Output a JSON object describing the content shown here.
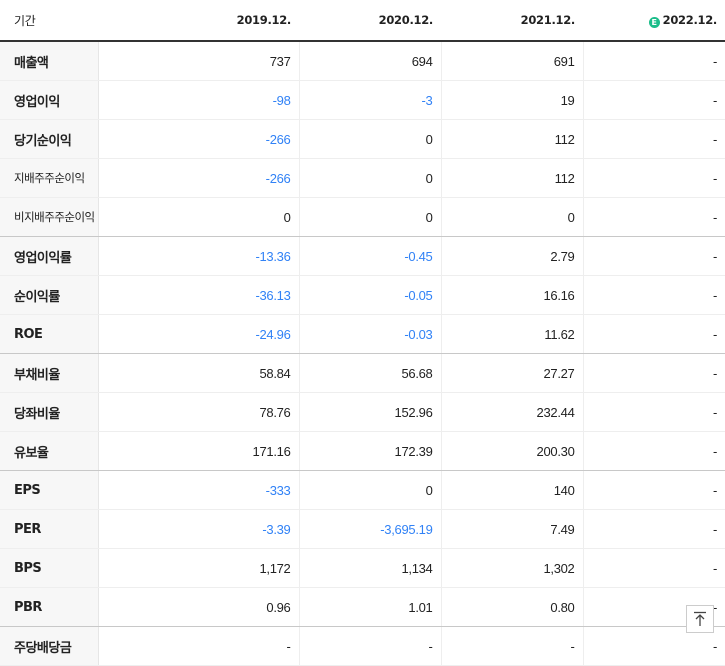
{
  "header": {
    "label": "기간",
    "years": [
      "2019.12.",
      "2020.12.",
      "2021.12.",
      "2022.12."
    ],
    "estimate_icon": "E"
  },
  "rows": [
    {
      "label": "매출액",
      "values": [
        "737",
        "694",
        "691",
        "-"
      ]
    },
    {
      "label": "영업이익",
      "values": [
        "-98",
        "-3",
        "19",
        "-"
      ]
    },
    {
      "label": "당기순이익",
      "values": [
        "-266",
        "0",
        "112",
        "-"
      ]
    },
    {
      "label": "지배주주순이익",
      "values": [
        "-266",
        "0",
        "112",
        "-"
      ]
    },
    {
      "label": "비지배주주순이익",
      "values": [
        "0",
        "0",
        "0",
        "-"
      ]
    },
    {
      "label": "영업이익률",
      "values": [
        "-13.36",
        "-0.45",
        "2.79",
        "-"
      ]
    },
    {
      "label": "순이익률",
      "values": [
        "-36.13",
        "-0.05",
        "16.16",
        "-"
      ]
    },
    {
      "label": "ROE",
      "values": [
        "-24.96",
        "-0.03",
        "11.62",
        "-"
      ]
    },
    {
      "label": "부채비율",
      "values": [
        "58.84",
        "56.68",
        "27.27",
        "-"
      ]
    },
    {
      "label": "당좌비율",
      "values": [
        "78.76",
        "152.96",
        "232.44",
        "-"
      ]
    },
    {
      "label": "유보율",
      "values": [
        "171.16",
        "172.39",
        "200.30",
        "-"
      ]
    },
    {
      "label": "EPS",
      "values": [
        "-333",
        "0",
        "140",
        "-"
      ]
    },
    {
      "label": "PER",
      "values": [
        "-3.39",
        "-3,695.19",
        "7.49",
        "-"
      ]
    },
    {
      "label": "BPS",
      "values": [
        "1,172",
        "1,134",
        "1,302",
        "-"
      ]
    },
    {
      "label": "PBR",
      "values": [
        "0.96",
        "1.01",
        "0.80",
        "-"
      ]
    },
    {
      "label": "주당배당금",
      "values": [
        "-",
        "-",
        "-",
        "-"
      ]
    }
  ],
  "icons": {
    "scroll_top": "arrow-up-to-line-icon"
  },
  "colors": {
    "negative": "#3182f6",
    "estimate_badge": "#1bbd8a"
  }
}
